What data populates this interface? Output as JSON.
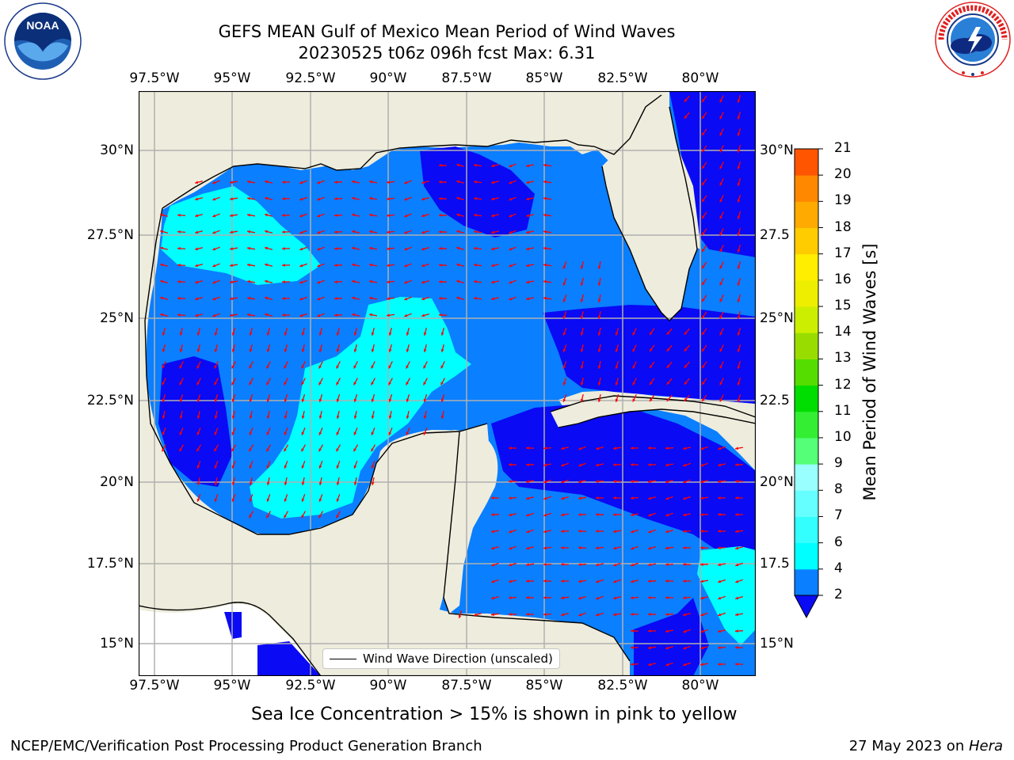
{
  "title": {
    "line1": "GEFS MEAN Gulf of Mexico Mean Period of Wind Waves",
    "line2": "20230525 t06z 096h fcst   Max: 6.31"
  },
  "logos": {
    "left": {
      "icon": "noaa-logo",
      "ring_text": "NATIONAL OCEANIC AND ATMOSPHERIC ADMINISTRATION · U.S. DEPARTMENT OF COMMERCE",
      "label": "NOAA"
    },
    "right": {
      "icon": "nws-logo",
      "ring_text": "NATIONAL WEATHER SERVICE"
    }
  },
  "map": {
    "lon_ticks": [
      "97.5°W",
      "95°W",
      "92.5°W",
      "90°W",
      "87.5°W",
      "85°W",
      "82.5°W",
      "80°W"
    ],
    "lat_ticks_left": [
      "30°N",
      "27.5°N",
      "25°N",
      "22.5°N",
      "20°N",
      "17.5°N",
      "15°N"
    ],
    "lat_ticks_right": [
      "30°N",
      "27.5",
      "25°N",
      "22.5",
      "20°N",
      "17.5",
      "15°N"
    ],
    "legend": "Wind Wave Direction (unscaled)",
    "colors": {
      "land": "#eeecdc",
      "ocean_2_4": "#0a7fff",
      "ocean_below_2": "#0a0af5",
      "ocean_4_6": "#00ffff",
      "arrows": "#ff0000",
      "grid": "#b0b0b0"
    }
  },
  "colorbar": {
    "label": "Mean Period of Wind Waves [s]",
    "ticks": [
      "2",
      "4",
      "6",
      "7",
      "8",
      "9",
      "10",
      "11",
      "12",
      "13",
      "14",
      "15",
      "16",
      "17",
      "18",
      "19",
      "20",
      "21"
    ],
    "colors": [
      "#0a7fff",
      "#00ffff",
      "#33ffff",
      "#66ffff",
      "#99ffff",
      "#55ff77",
      "#33ee33",
      "#00dd00",
      "#55dd00",
      "#99dd00",
      "#ccee00",
      "#eeee00",
      "#ffee00",
      "#ffcc00",
      "#ffaa00",
      "#ff8800",
      "#ff5500",
      "#ff2200",
      "#ff0000"
    ],
    "under_color": "#0a0af5"
  },
  "caption": "Sea Ice Concentration > 15% is shown in pink to yellow",
  "footer": {
    "left": "NCEP/EMC/Verification Post Processing Product Generation Branch",
    "date": "27 May 2023 on ",
    "machine": "Hera"
  }
}
